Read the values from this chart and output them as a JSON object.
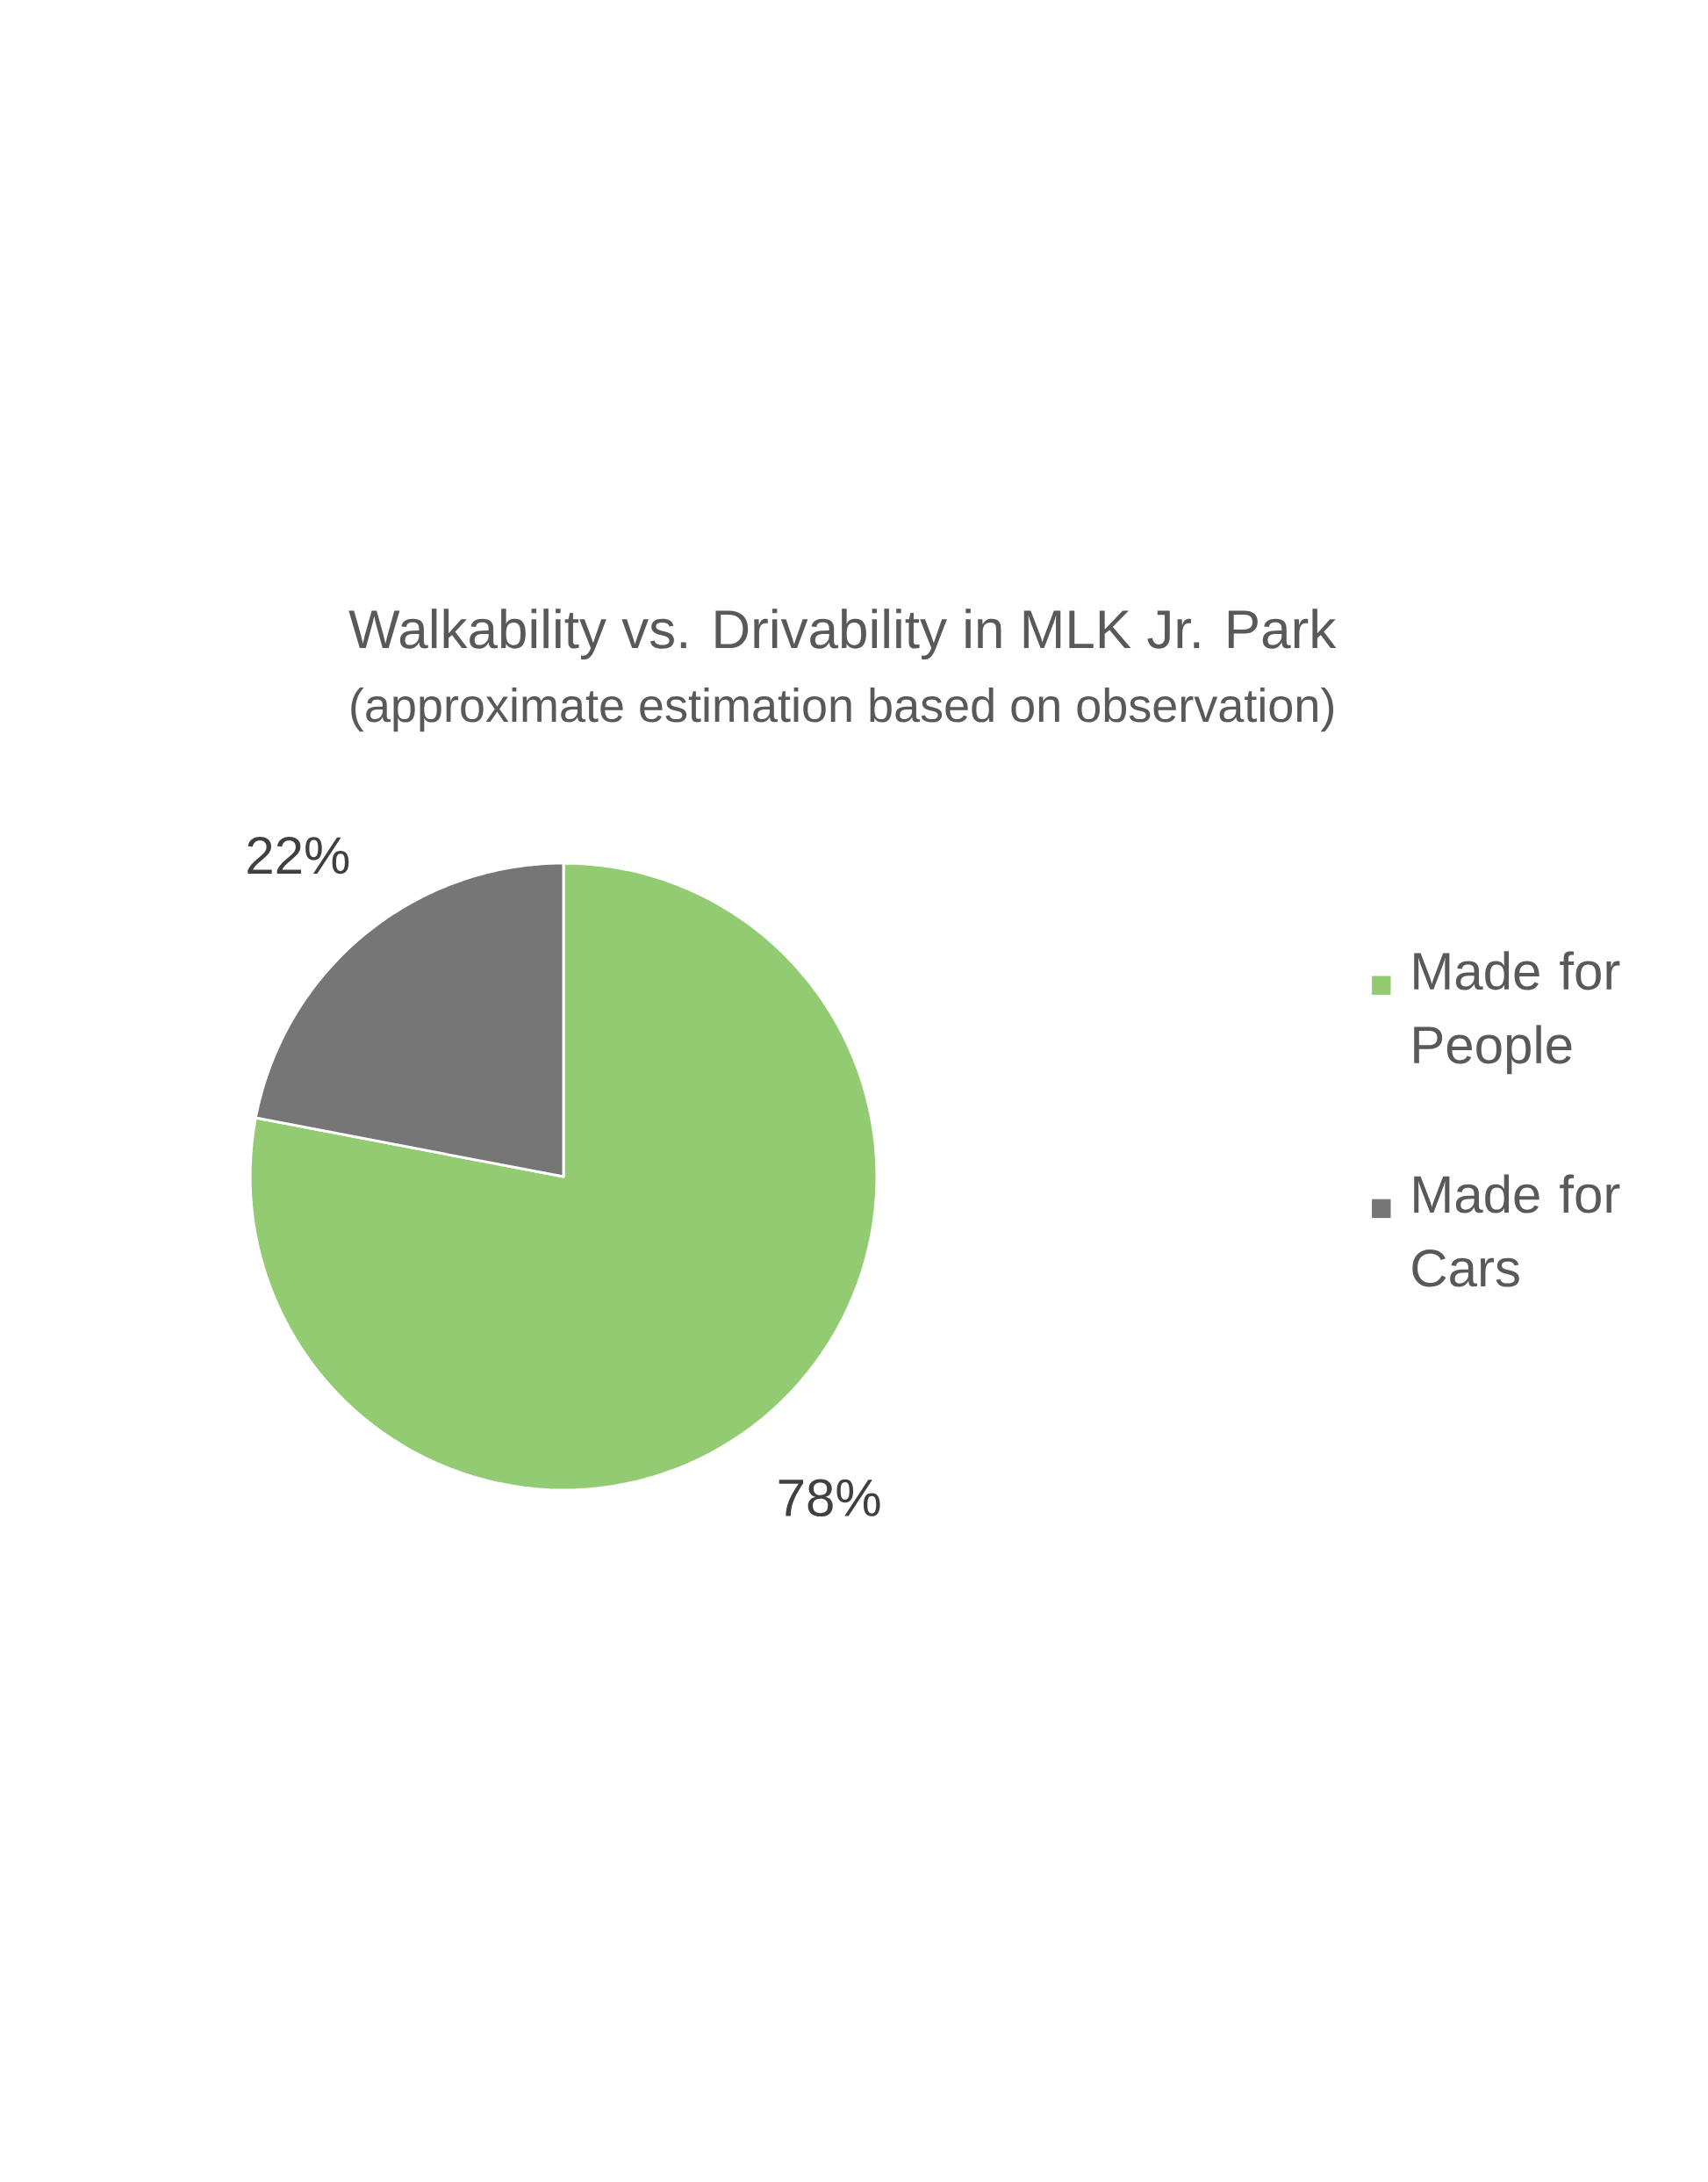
{
  "chart_data": {
    "type": "pie",
    "title": "Walkability vs. Drivability in MLK Jr. Park",
    "subtitle": "(approximate estimation based on observation)",
    "categories": [
      "Made for People",
      "Made for Cars"
    ],
    "values": [
      78,
      22
    ],
    "colors": [
      "#93cb73",
      "#767676"
    ],
    "value_labels": [
      "78%",
      "22%"
    ],
    "legend": "right"
  }
}
